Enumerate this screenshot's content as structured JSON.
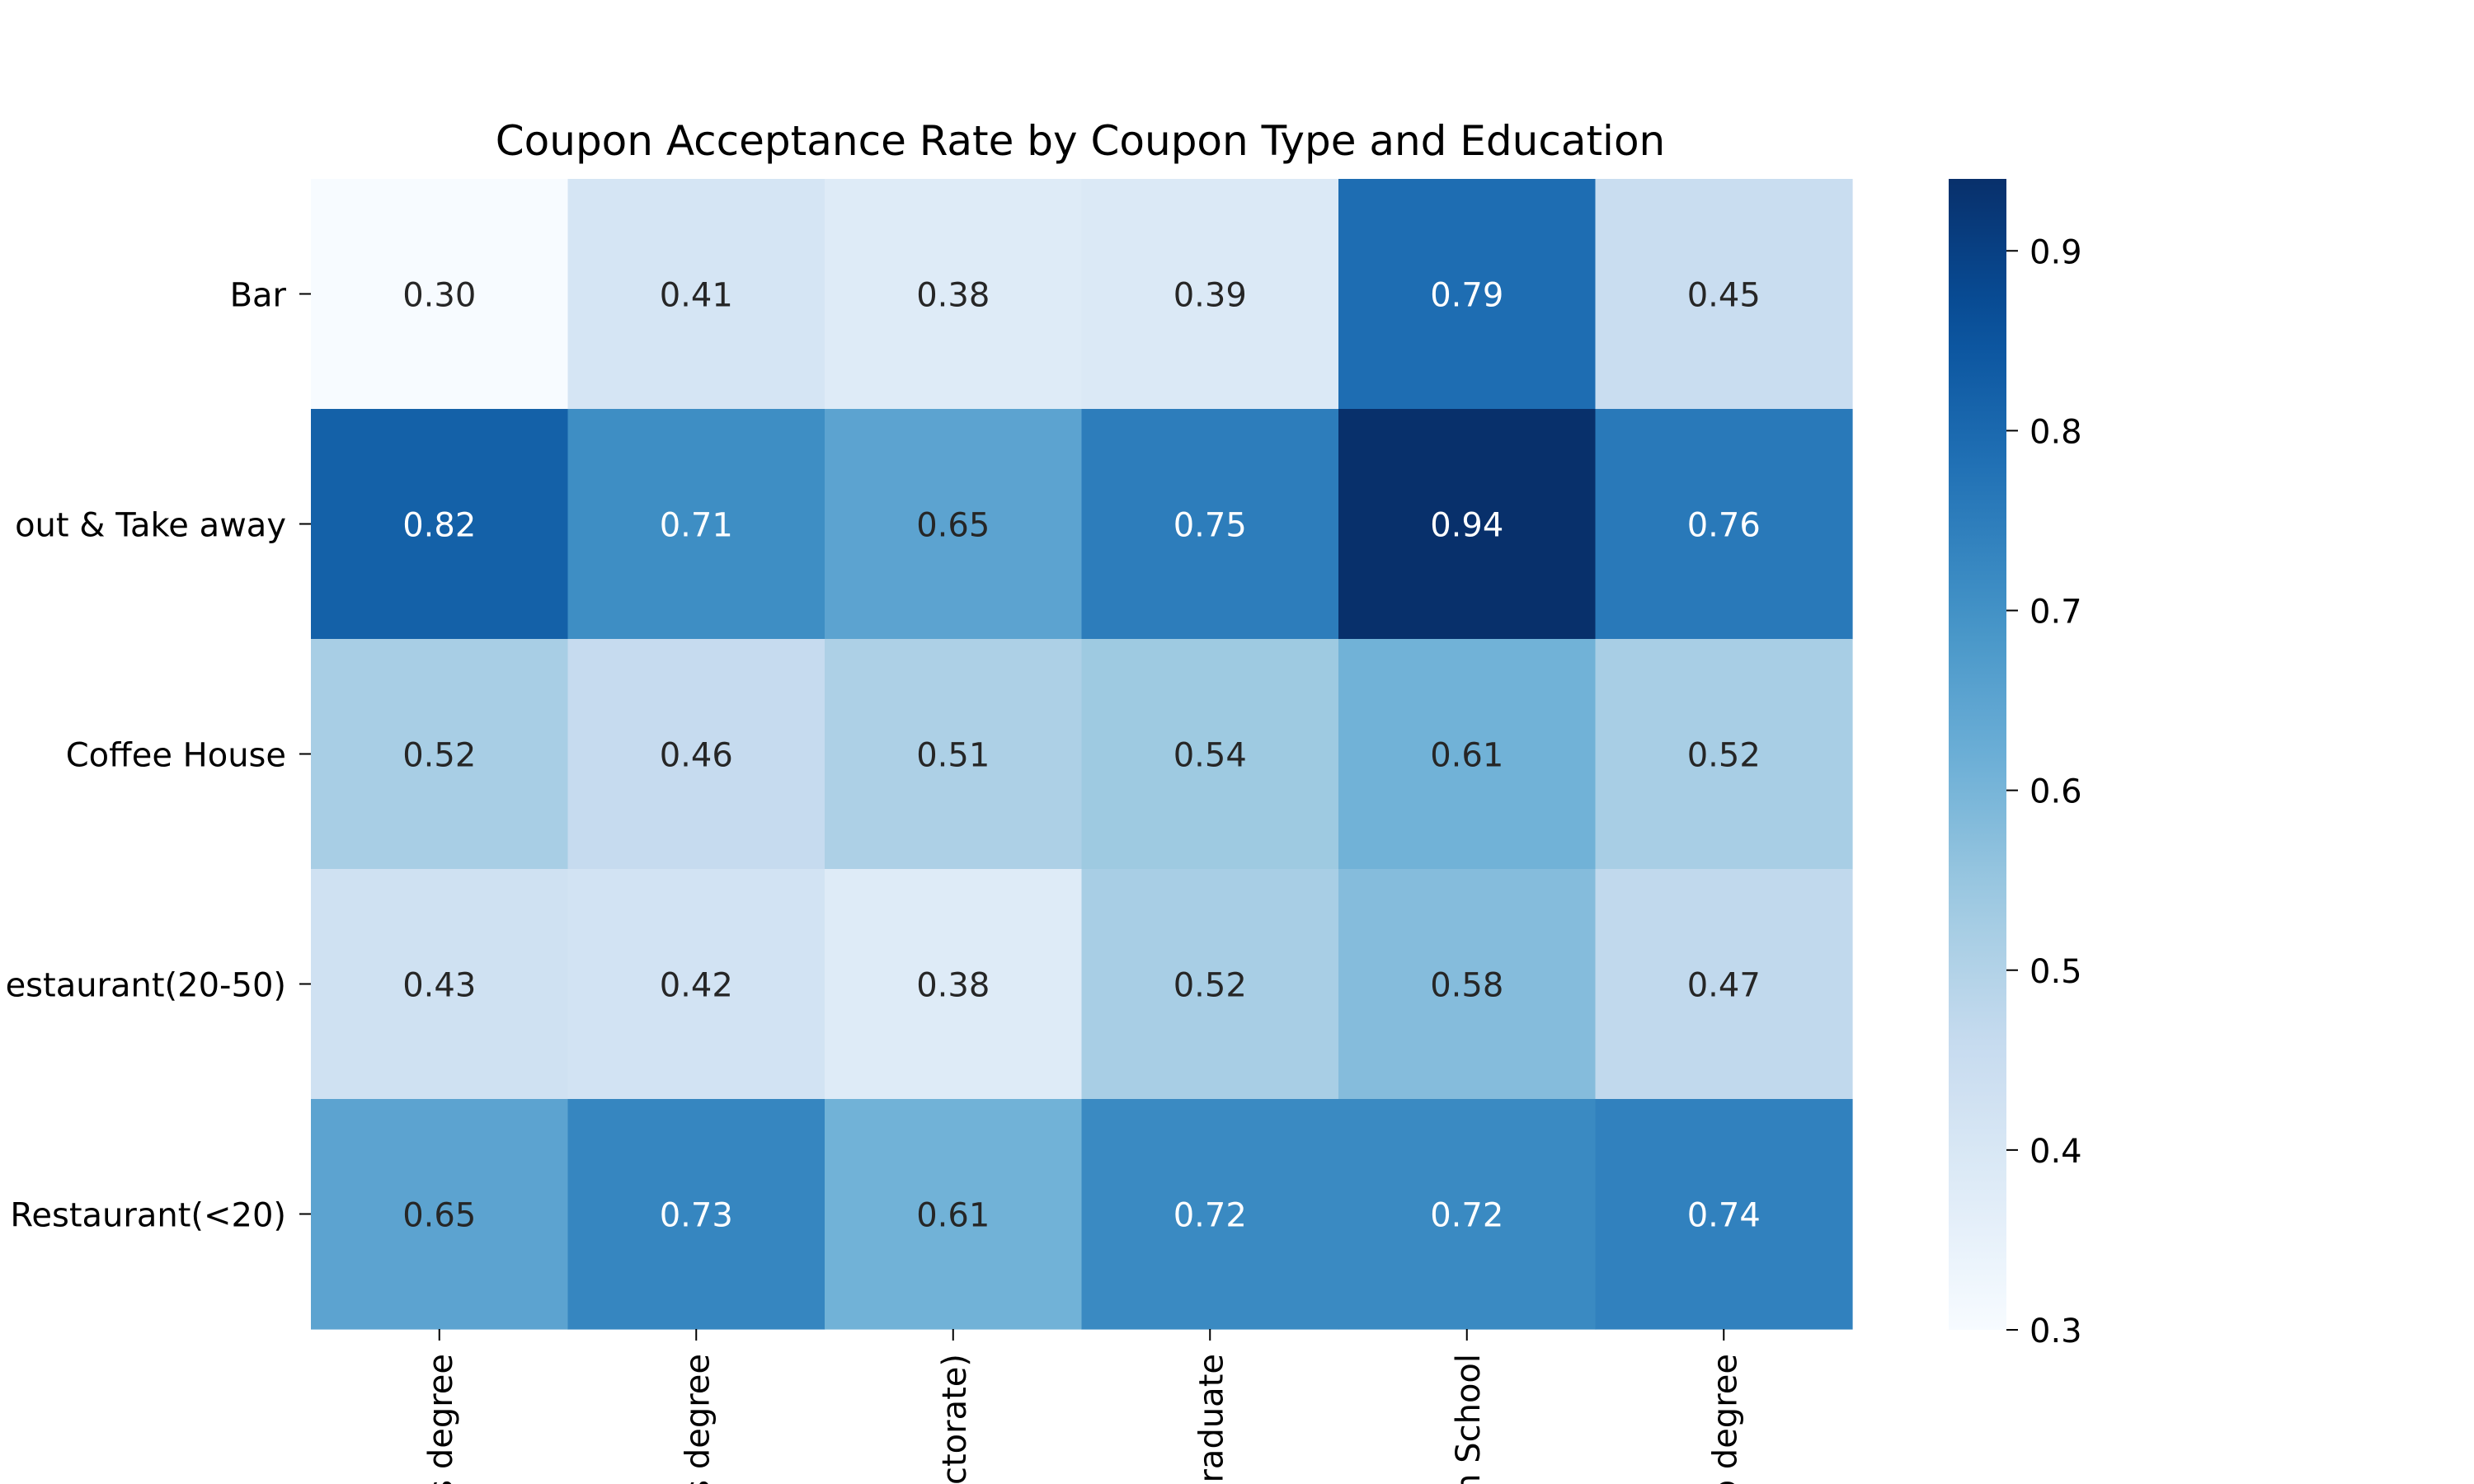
{
  "chart_data": {
    "type": "heatmap",
    "title": "Coupon Acceptance Rate by Coupon Type and Education",
    "xlabel": "",
    "ylabel": "",
    "rows": [
      "Bar",
      "out & Take away",
      "Coffee House",
      "estaurant(20-50)",
      "Restaurant(<20)"
    ],
    "columns": [
      "s degree",
      "s degree",
      "ctorate)",
      "raduate",
      "n School",
      "o degree"
    ],
    "values": [
      [
        0.3,
        0.41,
        0.38,
        0.39,
        0.79,
        0.45
      ],
      [
        0.82,
        0.71,
        0.65,
        0.75,
        0.94,
        0.76
      ],
      [
        0.52,
        0.46,
        0.51,
        0.54,
        0.61,
        0.52
      ],
      [
        0.43,
        0.42,
        0.38,
        0.52,
        0.58,
        0.47
      ],
      [
        0.65,
        0.73,
        0.61,
        0.72,
        0.72,
        0.74
      ]
    ],
    "value_format": "0.00",
    "colorbar": {
      "colormap": "Blues",
      "vmin": 0.3,
      "vmax": 0.94,
      "ticks": [
        "0.3",
        "0.4",
        "0.5",
        "0.6",
        "0.7",
        "0.8",
        "0.9"
      ]
    }
  }
}
